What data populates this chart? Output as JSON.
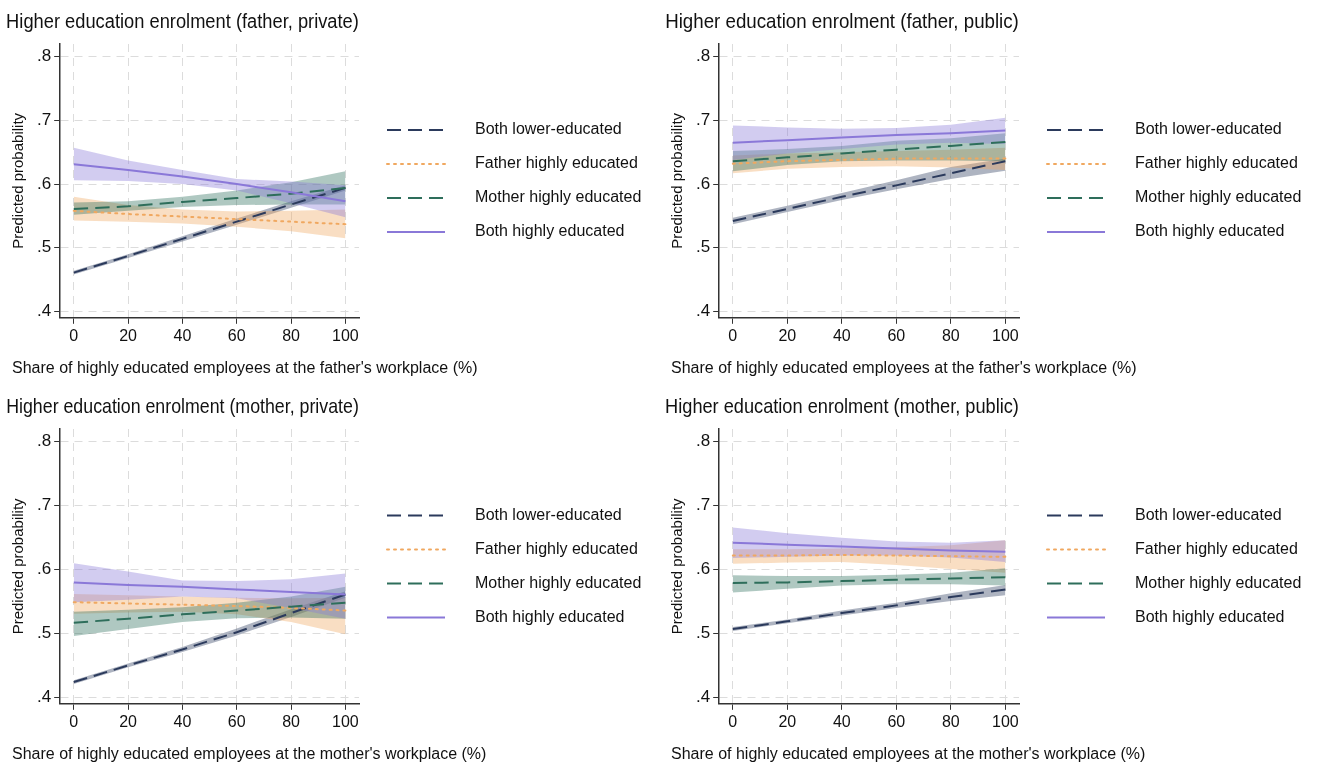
{
  "chart_data": [
    {
      "type": "line",
      "title": "Higher education enrolment (father, private)",
      "xlabel": "Share of highly educated employees at the father's workplace (%)",
      "ylabel": "Predicted probability",
      "x": [
        0,
        20,
        40,
        60,
        80,
        100
      ],
      "xlim": [
        -5,
        105
      ],
      "xticks": [
        0,
        20,
        40,
        60,
        80,
        100
      ],
      "ylim": [
        0.39,
        0.82
      ],
      "yticks": [
        {
          "value": 0.4,
          "label": ".4"
        },
        {
          "value": 0.5,
          "label": ".5"
        },
        {
          "value": 0.6,
          "label": ".6"
        },
        {
          "value": 0.7,
          "label": ".7"
        },
        {
          "value": 0.8,
          "label": ".8"
        }
      ],
      "grid": true,
      "legend": "right",
      "series": [
        {
          "name": "Both lower-educated",
          "color": "#2b3a5c",
          "line_style": "dashed",
          "values": [
            0.461,
            0.487,
            0.514,
            0.541,
            0.568,
            0.594
          ],
          "lower": [
            0.458,
            0.484,
            0.51,
            0.536,
            0.563,
            0.59
          ],
          "upper": [
            0.464,
            0.49,
            0.518,
            0.546,
            0.573,
            0.598
          ]
        },
        {
          "name": "Father highly educated",
          "color": "#f0a860",
          "line_style": "dotted",
          "values": [
            0.558,
            0.553,
            0.549,
            0.545,
            0.541,
            0.537
          ],
          "lower": [
            0.543,
            0.541,
            0.538,
            0.533,
            0.526,
            0.515
          ],
          "upper": [
            0.58,
            0.567,
            0.56,
            0.557,
            0.558,
            0.56
          ]
        },
        {
          "name": "Mother highly educated",
          "color": "#2e6e5b",
          "line_style": "dashed",
          "values": [
            0.561,
            0.565,
            0.572,
            0.578,
            0.585,
            0.594
          ],
          "lower": [
            0.552,
            0.558,
            0.564,
            0.567,
            0.568,
            0.568
          ],
          "upper": [
            0.571,
            0.573,
            0.58,
            0.59,
            0.603,
            0.62
          ]
        },
        {
          "name": "Both highly educated",
          "color": "#8a78d8",
          "line_style": "solid",
          "values": [
            0.631,
            0.622,
            0.612,
            0.6,
            0.587,
            0.573
          ],
          "lower": [
            0.606,
            0.605,
            0.6,
            0.59,
            0.57,
            0.548
          ],
          "upper": [
            0.657,
            0.637,
            0.622,
            0.608,
            0.604,
            0.598
          ]
        }
      ]
    },
    {
      "type": "line",
      "title": "Higher education enrolment (father, public)",
      "xlabel": "Share of highly educated employees at the father's workplace (%)",
      "ylabel": "Predicted probability",
      "x": [
        0,
        20,
        40,
        60,
        80,
        100
      ],
      "xlim": [
        -5,
        105
      ],
      "xticks": [
        0,
        20,
        40,
        60,
        80,
        100
      ],
      "ylim": [
        0.39,
        0.82
      ],
      "yticks": [
        {
          "value": 0.4,
          "label": ".4"
        },
        {
          "value": 0.5,
          "label": ".5"
        },
        {
          "value": 0.6,
          "label": ".6"
        },
        {
          "value": 0.7,
          "label": ".7"
        },
        {
          "value": 0.8,
          "label": ".8"
        }
      ],
      "grid": true,
      "legend": "right",
      "series": [
        {
          "name": "Both lower-educated",
          "color": "#2b3a5c",
          "line_style": "dashed",
          "values": [
            0.542,
            0.561,
            0.58,
            0.598,
            0.617,
            0.636
          ],
          "lower": [
            0.537,
            0.556,
            0.575,
            0.592,
            0.608,
            0.621
          ],
          "upper": [
            0.547,
            0.566,
            0.586,
            0.606,
            0.627,
            0.64
          ]
        },
        {
          "name": "Father highly educated",
          "color": "#f0a860",
          "line_style": "dotted",
          "values": [
            0.632,
            0.636,
            0.638,
            0.64,
            0.64,
            0.64
          ],
          "lower": [
            0.617,
            0.624,
            0.627,
            0.628,
            0.626,
            0.622
          ],
          "upper": [
            0.645,
            0.648,
            0.65,
            0.652,
            0.654,
            0.657
          ]
        },
        {
          "name": "Mother highly educated",
          "color": "#2e6e5b",
          "line_style": "dashed",
          "values": [
            0.636,
            0.642,
            0.648,
            0.654,
            0.66,
            0.666
          ],
          "lower": [
            0.62,
            0.63,
            0.636,
            0.637,
            0.637,
            0.636
          ],
          "upper": [
            0.652,
            0.655,
            0.66,
            0.668,
            0.672,
            0.68
          ]
        },
        {
          "name": "Both highly educated",
          "color": "#8a78d8",
          "line_style": "solid",
          "values": [
            0.665,
            0.669,
            0.673,
            0.677,
            0.68,
            0.684
          ],
          "lower": [
            0.638,
            0.648,
            0.655,
            0.662,
            0.665,
            0.663
          ],
          "upper": [
            0.692,
            0.689,
            0.687,
            0.688,
            0.693,
            0.704
          ]
        }
      ]
    },
    {
      "type": "line",
      "title": "Higher education enrolment (mother, private)",
      "xlabel": "Share of highly educated employees at the mother's workplace (%)",
      "ylabel": "Predicted probability",
      "x": [
        0,
        20,
        40,
        60,
        80,
        100
      ],
      "xlim": [
        -5,
        105
      ],
      "xticks": [
        0,
        20,
        40,
        60,
        80,
        100
      ],
      "ylim": [
        0.39,
        0.82
      ],
      "yticks": [
        {
          "value": 0.4,
          "label": ".4"
        },
        {
          "value": 0.5,
          "label": ".5"
        },
        {
          "value": 0.6,
          "label": ".6"
        },
        {
          "value": 0.7,
          "label": ".7"
        },
        {
          "value": 0.8,
          "label": ".8"
        }
      ],
      "grid": true,
      "legend": "right",
      "series": [
        {
          "name": "Both lower-educated",
          "color": "#2b3a5c",
          "line_style": "dashed",
          "values": [
            0.424,
            0.45,
            0.475,
            0.502,
            0.532,
            0.561
          ],
          "lower": [
            0.421,
            0.447,
            0.471,
            0.497,
            0.526,
            0.556
          ],
          "upper": [
            0.427,
            0.453,
            0.479,
            0.508,
            0.538,
            0.566
          ]
        },
        {
          "name": "Father highly educated",
          "color": "#f0a860",
          "line_style": "dotted",
          "values": [
            0.549,
            0.547,
            0.545,
            0.543,
            0.54,
            0.536
          ],
          "lower": [
            0.531,
            0.533,
            0.534,
            0.53,
            0.518,
            0.499
          ],
          "upper": [
            0.562,
            0.56,
            0.558,
            0.556,
            0.555,
            0.556
          ]
        },
        {
          "name": "Mother highly educated",
          "color": "#2e6e5b",
          "line_style": "dashed",
          "values": [
            0.517,
            0.523,
            0.53,
            0.536,
            0.542,
            0.548
          ],
          "lower": [
            0.496,
            0.507,
            0.518,
            0.524,
            0.525,
            0.523
          ],
          "upper": [
            0.534,
            0.537,
            0.541,
            0.548,
            0.558,
            0.573
          ]
        },
        {
          "name": "Both highly educated",
          "color": "#8a78d8",
          "line_style": "solid",
          "values": [
            0.58,
            0.576,
            0.573,
            0.569,
            0.565,
            0.561
          ],
          "lower": [
            0.549,
            0.553,
            0.558,
            0.555,
            0.54,
            0.523
          ],
          "upper": [
            0.61,
            0.597,
            0.583,
            0.582,
            0.585,
            0.594
          ]
        }
      ]
    },
    {
      "type": "line",
      "title": "Higher education enrolment (mother, public)",
      "xlabel": "Share of highly educated employees at the mother's workplace (%)",
      "ylabel": "Predicted probability",
      "x": [
        0,
        20,
        40,
        60,
        80,
        100
      ],
      "xlim": [
        -5,
        105
      ],
      "xticks": [
        0,
        20,
        40,
        60,
        80,
        100
      ],
      "ylim": [
        0.39,
        0.82
      ],
      "yticks": [
        {
          "value": 0.4,
          "label": ".4"
        },
        {
          "value": 0.5,
          "label": ".5"
        },
        {
          "value": 0.6,
          "label": ".6"
        },
        {
          "value": 0.7,
          "label": ".7"
        },
        {
          "value": 0.8,
          "label": ".8"
        }
      ],
      "grid": true,
      "legend": "right",
      "series": [
        {
          "name": "Both lower-educated",
          "color": "#2b3a5c",
          "line_style": "dashed",
          "values": [
            0.507,
            0.519,
            0.532,
            0.544,
            0.557,
            0.569
          ],
          "lower": [
            0.504,
            0.516,
            0.528,
            0.54,
            0.551,
            0.56
          ],
          "upper": [
            0.51,
            0.522,
            0.536,
            0.548,
            0.563,
            0.576
          ]
        },
        {
          "name": "Father highly educated",
          "color": "#f0a860",
          "line_style": "dotted",
          "values": [
            0.622,
            0.622,
            0.623,
            0.622,
            0.621,
            0.62
          ],
          "lower": [
            0.609,
            0.611,
            0.612,
            0.607,
            0.601,
            0.595
          ],
          "upper": [
            0.632,
            0.632,
            0.633,
            0.635,
            0.638,
            0.646
          ]
        },
        {
          "name": "Mother highly educated",
          "color": "#2e6e5b",
          "line_style": "dashed",
          "values": [
            0.579,
            0.58,
            0.582,
            0.584,
            0.586,
            0.588
          ],
          "lower": [
            0.564,
            0.57,
            0.575,
            0.577,
            0.577,
            0.575
          ],
          "upper": [
            0.591,
            0.59,
            0.59,
            0.592,
            0.595,
            0.602
          ]
        },
        {
          "name": "Both highly educated",
          "color": "#8a78d8",
          "line_style": "solid",
          "values": [
            0.642,
            0.639,
            0.636,
            0.633,
            0.63,
            0.628
          ],
          "lower": [
            0.618,
            0.62,
            0.622,
            0.622,
            0.619,
            0.612
          ],
          "upper": [
            0.666,
            0.657,
            0.65,
            0.644,
            0.642,
            0.646
          ]
        }
      ]
    }
  ]
}
